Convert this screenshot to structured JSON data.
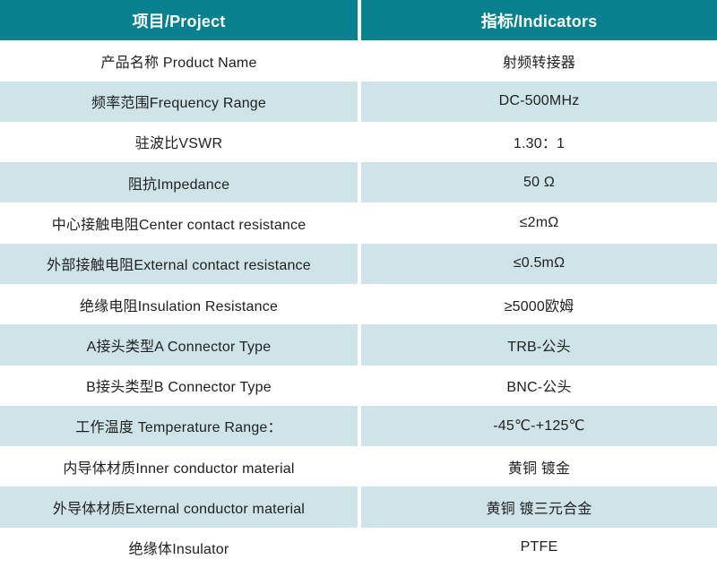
{
  "colors": {
    "header_bg": "#07818D",
    "header_text": "#FFFFFF",
    "row_alt_bg": "#CFE4E8",
    "row_bg": "#FFFFFF",
    "body_text": "#212121"
  },
  "table": {
    "header": {
      "project_label": "项目/Project",
      "indicators_label": "指标/Indicators"
    },
    "rows": [
      {
        "project": "产品名称 Product Name",
        "indicator": "射频转接器"
      },
      {
        "project": "频率范围Frequency Range",
        "indicator": "DC-500MHz"
      },
      {
        "project": "驻波比VSWR",
        "indicator": "1.30：1"
      },
      {
        "project": "阻抗Impedance",
        "indicator": "50 Ω"
      },
      {
        "project": "中心接触电阻Center contact resistance",
        "indicator": "≤2mΩ"
      },
      {
        "project": "外部接触电阻External contact resistance",
        "indicator": "≤0.5mΩ"
      },
      {
        "project": "绝缘电阻Insulation Resistance",
        "indicator": "≥5000欧姆"
      },
      {
        "project": "A接头类型A Connector Type",
        "indicator": "TRB-公头"
      },
      {
        "project": "B接头类型B Connector Type",
        "indicator": "BNC-公头"
      },
      {
        "project": "工作温度 Temperature Range：",
        "indicator": "-45℃-+125℃"
      },
      {
        "project": "内导体材质Inner conductor material",
        "indicator": "黄铜 镀金"
      },
      {
        "project": "外导体材质External conductor material",
        "indicator": "黄铜 镀三元合金"
      },
      {
        "project": "绝缘体Insulator",
        "indicator": "PTFE"
      }
    ]
  }
}
